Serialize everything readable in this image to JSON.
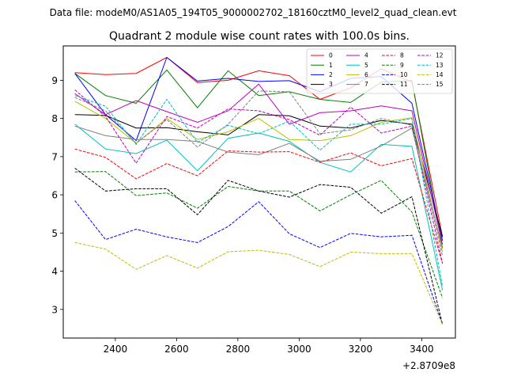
{
  "chart_data": {
    "type": "line",
    "suptitle": "Data file: modeM0/AS1A05_194T05_9000002702_18160cztM0_level2_quad_clean.evt",
    "title": "Quadrant 2 module wise count rates with 100.0s bins.",
    "xlabel": "",
    "ylabel": "",
    "x_offset_label": "+2.8709e8",
    "xlim": [
      2230,
      3510
    ],
    "ylim": [
      2.25,
      9.9
    ],
    "x_ticks": [
      2400,
      2600,
      2800,
      3000,
      3200,
      3400
    ],
    "x_tick_labels": [
      "2400",
      "2600",
      "2800",
      "3000",
      "3200",
      "3400"
    ],
    "y_ticks": [
      3,
      4,
      5,
      6,
      7,
      8,
      9
    ],
    "y_tick_labels": [
      "3",
      "4",
      "5",
      "6",
      "7",
      "8",
      "9"
    ],
    "grid": false,
    "legend_position": "top-right",
    "legend_columns": 4,
    "x": [
      2268,
      2368,
      2468,
      2568,
      2668,
      2768,
      2868,
      2968,
      3068,
      3168,
      3268,
      3368,
      3468
    ],
    "series": [
      {
        "name": "0",
        "color": "#ff0000",
        "dash": "solid",
        "values": [
          9.2,
          9.15,
          9.18,
          9.6,
          8.94,
          9.0,
          9.25,
          9.12,
          8.5,
          8.8,
          9.3,
          8.95,
          4.9
        ]
      },
      {
        "name": "1",
        "color": "#008000",
        "dash": "solid",
        "values": [
          9.18,
          8.6,
          8.4,
          9.27,
          8.28,
          9.25,
          8.6,
          8.7,
          8.5,
          8.42,
          8.95,
          9.0,
          4.6
        ]
      },
      {
        "name": "2",
        "color": "#0000ff",
        "dash": "solid",
        "values": [
          9.18,
          8.1,
          7.42,
          9.6,
          8.98,
          9.05,
          8.97,
          8.99,
          8.7,
          9.05,
          9.1,
          8.4,
          4.8
        ]
      },
      {
        "name": "3",
        "color": "#000000",
        "dash": "solid",
        "values": [
          8.1,
          8.08,
          7.75,
          7.76,
          7.65,
          7.57,
          8.1,
          8.07,
          7.8,
          7.75,
          7.95,
          7.85,
          4.9
        ]
      },
      {
        "name": "4",
        "color": "#bf00bf",
        "dash": "solid",
        "values": [
          8.65,
          8.1,
          8.47,
          8.18,
          7.9,
          8.2,
          8.9,
          7.85,
          8.15,
          8.2,
          8.33,
          8.2,
          4.7
        ]
      },
      {
        "name": "5",
        "color": "#00bfbf",
        "dash": "solid",
        "values": [
          7.85,
          7.2,
          7.08,
          7.43,
          6.63,
          7.48,
          7.62,
          7.4,
          6.85,
          6.6,
          7.32,
          7.27,
          3.5
        ]
      },
      {
        "name": "6",
        "color": "#bfbf00",
        "dash": "solid",
        "values": [
          8.45,
          8.0,
          7.35,
          8.0,
          7.45,
          7.65,
          8.0,
          7.45,
          7.42,
          7.55,
          7.9,
          8.02,
          4.5
        ]
      },
      {
        "name": "7",
        "color": "#808080",
        "dash": "solid",
        "values": [
          7.8,
          7.55,
          7.45,
          7.45,
          7.4,
          7.12,
          7.05,
          7.35,
          6.88,
          6.93,
          7.28,
          7.75,
          4.6
        ]
      },
      {
        "name": "8",
        "color": "#ff0000",
        "dash": "dashed",
        "values": [
          7.2,
          6.98,
          6.42,
          6.82,
          6.5,
          7.15,
          7.12,
          7.13,
          6.85,
          7.1,
          6.76,
          6.95,
          4.2
        ]
      },
      {
        "name": "9",
        "color": "#008000",
        "dash": "dashed",
        "values": [
          6.6,
          6.61,
          5.98,
          6.05,
          5.65,
          6.22,
          6.1,
          6.1,
          5.58,
          6.0,
          6.38,
          5.55,
          3.3
        ]
      },
      {
        "name": "10",
        "color": "#0000ff",
        "dash": "dashed",
        "values": [
          5.85,
          4.83,
          5.1,
          4.9,
          4.75,
          5.17,
          5.82,
          4.98,
          4.62,
          4.99,
          4.9,
          4.94,
          2.6
        ]
      },
      {
        "name": "11",
        "color": "#000000",
        "dash": "dashed",
        "values": [
          6.7,
          6.1,
          6.16,
          6.16,
          5.48,
          6.38,
          6.1,
          5.94,
          6.27,
          6.2,
          5.52,
          5.95,
          2.6
        ]
      },
      {
        "name": "12",
        "color": "#bf00bf",
        "dash": "dashed",
        "values": [
          8.75,
          8.05,
          6.83,
          8.05,
          7.75,
          8.25,
          8.2,
          7.97,
          7.56,
          8.3,
          7.62,
          7.8,
          4.2
        ]
      },
      {
        "name": "13",
        "color": "#00bfbf",
        "dash": "dashed",
        "values": [
          8.6,
          8.32,
          7.32,
          8.5,
          7.37,
          7.82,
          7.6,
          7.93,
          7.17,
          7.85,
          7.85,
          8.0,
          3.6
        ]
      },
      {
        "name": "14",
        "color": "#bfbf00",
        "dash": "dashed",
        "values": [
          4.75,
          4.58,
          4.05,
          4.41,
          4.08,
          4.51,
          4.55,
          4.44,
          4.12,
          4.5,
          4.46,
          4.46,
          2.6
        ]
      },
      {
        "name": "15",
        "color": "#808080",
        "dash": "dashed",
        "values": [
          8.55,
          8.2,
          7.35,
          7.97,
          7.25,
          7.85,
          8.72,
          8.7,
          7.6,
          7.7,
          8.0,
          7.82,
          4.4
        ]
      }
    ]
  }
}
